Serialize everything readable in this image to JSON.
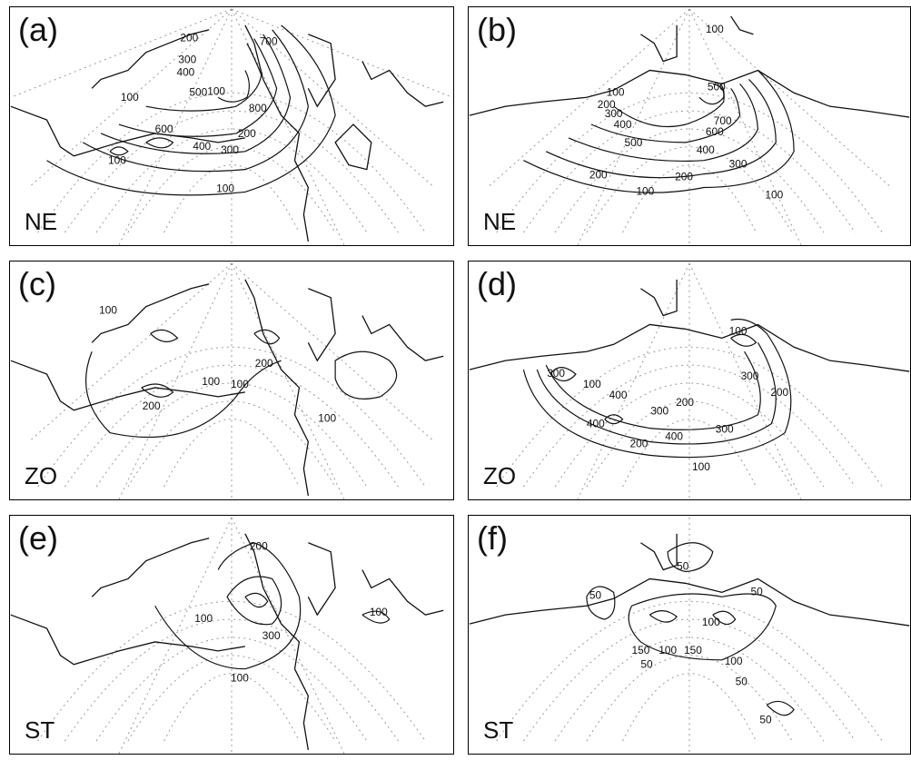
{
  "panels": [
    {
      "id": "a",
      "label": "(a)",
      "type": "NE",
      "contours": [
        "100",
        "200",
        "300",
        "400",
        "500",
        "600",
        "700",
        "800",
        "100",
        "300",
        "400",
        "100",
        "200",
        "100"
      ]
    },
    {
      "id": "b",
      "label": "(b)",
      "type": "NE",
      "contours": [
        "100",
        "100",
        "200",
        "300",
        "400",
        "500",
        "500",
        "600",
        "700",
        "400",
        "300",
        "200",
        "200",
        "100",
        "100"
      ]
    },
    {
      "id": "c",
      "label": "(c)",
      "type": "ZO",
      "contours": [
        "100",
        "100",
        "200",
        "100",
        "200",
        "100"
      ]
    },
    {
      "id": "d",
      "label": "(d)",
      "type": "ZO",
      "contours": [
        "300",
        "100",
        "400",
        "200",
        "300",
        "300",
        "200",
        "100",
        "400",
        "400",
        "300",
        "200",
        "100"
      ]
    },
    {
      "id": "e",
      "label": "(e)",
      "type": "ST",
      "contours": [
        "200",
        "100",
        "300",
        "100",
        "100"
      ]
    },
    {
      "id": "f",
      "label": "(f)",
      "type": "ST",
      "contours": [
        "50",
        "50",
        "150",
        "100",
        "100",
        "150",
        "50",
        "100",
        "50",
        "50",
        "50"
      ]
    }
  ]
}
